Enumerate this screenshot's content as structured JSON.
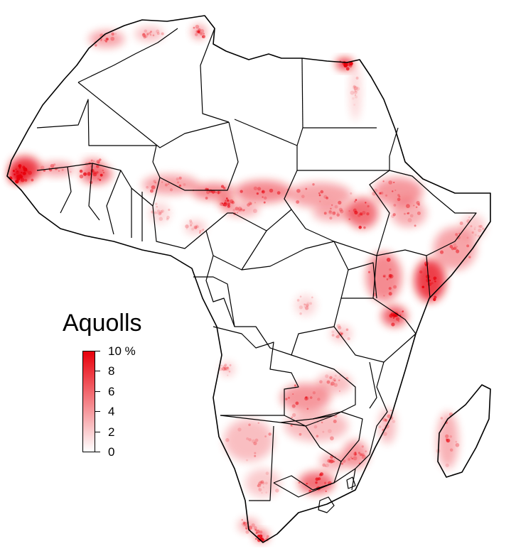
{
  "map": {
    "variable": "Aquolls",
    "colors": {
      "low": "#ffffff",
      "high": "#e8000b",
      "border": "#000000"
    }
  },
  "legend": {
    "title": "Aquolls",
    "ticks": [
      "10 %",
      "8",
      "6",
      "4",
      "2",
      "0"
    ],
    "range": [
      0,
      10
    ],
    "unit": "%"
  }
}
